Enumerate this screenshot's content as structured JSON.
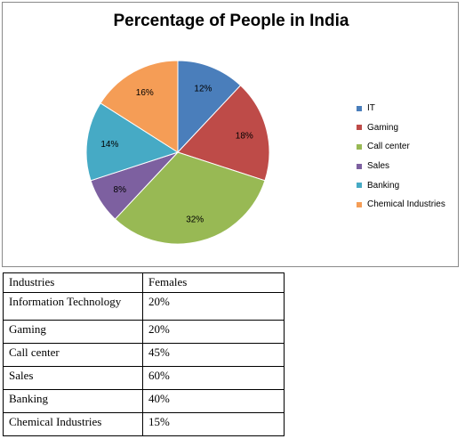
{
  "chart_data": {
    "type": "pie",
    "title": "Percentage of People in India",
    "categories": [
      "IT",
      "Gaming",
      "Call center",
      "Sales",
      "Banking",
      "Chemical Industries"
    ],
    "values": [
      12,
      18,
      32,
      8,
      14,
      16
    ],
    "labels": [
      "12%",
      "18%",
      "32%",
      "8%",
      "14%",
      "16%"
    ],
    "colors": [
      "#4a7ebb",
      "#be4b48",
      "#98b954",
      "#7d60a0",
      "#46aac5",
      "#f59d56"
    ],
    "legend_position": "right"
  },
  "table": {
    "headers": [
      "Industries",
      "Females"
    ],
    "rows": [
      [
        "Information Technology",
        "20%"
      ],
      [
        "Gaming",
        "20%"
      ],
      [
        "Call center",
        "45%"
      ],
      [
        "Sales",
        "60%"
      ],
      [
        "Banking",
        "40%"
      ],
      [
        "Chemical Industries",
        "15%"
      ]
    ]
  }
}
